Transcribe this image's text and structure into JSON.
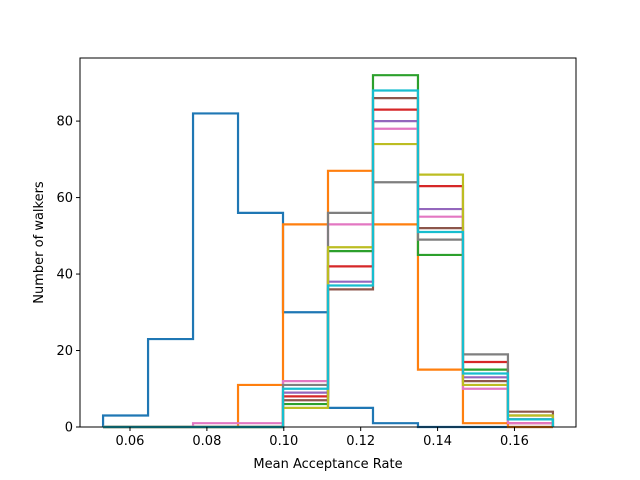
{
  "chart_data": {
    "type": "histogram-step",
    "xlabel": "Mean Acceptance Rate",
    "ylabel": "Number of walkers",
    "xlim": [
      0.047,
      0.176
    ],
    "ylim": [
      0,
      96.5
    ],
    "xticks": [
      0.06,
      0.08,
      0.1,
      0.12,
      0.14,
      0.16
    ],
    "xtick_labels": [
      "0.06",
      "0.08",
      "0.10",
      "0.12",
      "0.14",
      "0.16"
    ],
    "yticks": [
      0,
      20,
      40,
      60,
      80
    ],
    "ytick_labels": [
      "0",
      "20",
      "40",
      "60",
      "80"
    ],
    "grid": false,
    "bin_edges": [
      0.053,
      0.0647,
      0.0764,
      0.0881,
      0.0998,
      0.1115,
      0.1232,
      0.1349,
      0.1466,
      0.1583,
      0.17
    ],
    "series": [
      {
        "color": "#1f77b4",
        "values": [
          3,
          23,
          82,
          56,
          30,
          5,
          1,
          0,
          0,
          0
        ]
      },
      {
        "color": "#ff7f0e",
        "values": [
          0,
          0,
          0,
          11,
          53,
          67,
          53,
          15,
          1,
          0
        ]
      },
      {
        "color": "#2ca02c",
        "values": [
          0,
          0,
          0,
          0,
          6,
          46,
          92,
          45,
          15,
          2
        ]
      },
      {
        "color": "#d62728",
        "values": [
          0,
          0,
          0,
          0,
          8,
          42,
          83,
          63,
          17,
          1
        ]
      },
      {
        "color": "#9467bd",
        "values": [
          0,
          0,
          0,
          0,
          9,
          38,
          80,
          57,
          13,
          2
        ]
      },
      {
        "color": "#8c564b",
        "values": [
          0,
          0,
          0,
          0,
          7,
          36,
          86,
          52,
          12,
          4
        ]
      },
      {
        "color": "#e377c2",
        "values": [
          0,
          0,
          1,
          1,
          12,
          53,
          78,
          55,
          10,
          1
        ]
      },
      {
        "color": "#7f7f7f",
        "values": [
          0,
          0,
          0,
          0,
          11,
          56,
          64,
          49,
          19,
          3
        ]
      },
      {
        "color": "#bcbd22",
        "values": [
          0,
          0,
          0,
          0,
          5,
          47,
          74,
          66,
          11,
          3
        ]
      },
      {
        "color": "#17becf",
        "values": [
          0,
          0,
          0,
          0,
          10,
          37,
          88,
          51,
          14,
          2
        ]
      }
    ]
  }
}
